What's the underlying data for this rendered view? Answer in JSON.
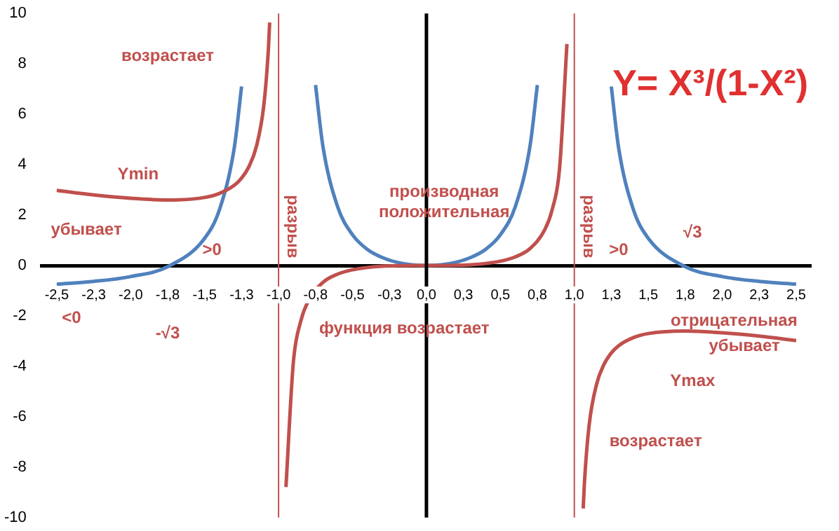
{
  "chart_data": {
    "type": "line",
    "title": "Y= X³/(1-X²)",
    "series": [
      {
        "color": "#c0504d",
        "x": [
          -2.5,
          -2.25,
          -2,
          -1.75,
          -1.5,
          -1.4,
          -1.3,
          -1.25,
          -1.2,
          -1.15,
          -1.1,
          -1.07,
          -1.06,
          -1,
          -0.95,
          -0.9,
          -0.85,
          -0.8,
          -0.7,
          -0.6,
          -0.5,
          -0.4,
          -0.3,
          -0.2,
          0,
          0.2,
          0.3,
          0.4,
          0.5,
          0.6,
          0.7,
          0.8,
          0.85,
          0.9,
          0.95,
          1,
          1.06,
          1.07,
          1.1,
          1.15,
          1.2,
          1.25,
          1.3,
          1.4,
          1.5,
          1.75,
          2,
          2.25,
          2.5
        ],
        "values": [
          2.98,
          2.8,
          2.67,
          2.6,
          2.7,
          2.86,
          3.18,
          3.47,
          3.93,
          4.72,
          6.34,
          8.46,
          9.64,
          null,
          -8.79,
          -3.84,
          -2.21,
          -1.42,
          -0.67,
          -0.34,
          -0.17,
          -0.08,
          -0.03,
          -0.01,
          0,
          0.01,
          0.03,
          0.08,
          0.17,
          0.34,
          0.67,
          1.42,
          2.21,
          3.84,
          8.79,
          null,
          -9.64,
          -8.46,
          -6.34,
          -4.72,
          -3.93,
          -3.47,
          -3.18,
          -2.86,
          -2.7,
          -2.6,
          -2.67,
          -2.8,
          -2.98
        ]
      },
      {
        "color": "#4f81bd",
        "x": [
          -2.5,
          -2.25,
          -2,
          -1.75,
          -1.5,
          -1.4,
          -1.3,
          -1.25,
          -1,
          -0.75,
          -0.7,
          -0.6,
          -0.5,
          -0.4,
          -0.3,
          -0.2,
          -0.1,
          0,
          0.1,
          0.2,
          0.3,
          0.4,
          0.5,
          0.6,
          0.7,
          0.75,
          1,
          1.25,
          1.3,
          1.4,
          1.5,
          1.75,
          2,
          2.25,
          2.5
        ],
        "values": [
          -0.74,
          -0.63,
          -0.44,
          -0.05,
          1.08,
          2.21,
          4.65,
          7.1,
          null,
          7.16,
          4.73,
          2.32,
          1.22,
          0.64,
          0.32,
          0.13,
          0.03,
          0,
          0.03,
          0.13,
          0.32,
          0.64,
          1.22,
          2.32,
          4.73,
          7.16,
          null,
          7.1,
          4.65,
          2.21,
          1.08,
          -0.05,
          -0.44,
          -0.63,
          -0.74
        ]
      }
    ],
    "xlim": [
      -2.6,
      2.6
    ],
    "xticks": [
      {
        "value": -2.5,
        "label": "-2,5"
      },
      {
        "value": -2.25,
        "label": "-2,3"
      },
      {
        "value": -2,
        "label": "-2,0"
      },
      {
        "value": -1.75,
        "label": "-1,8"
      },
      {
        "value": -1.5,
        "label": "-1,5"
      },
      {
        "value": -1.25,
        "label": "-1,3"
      },
      {
        "value": -1,
        "label": "-1,0"
      },
      {
        "value": -0.75,
        "label": "-0,8"
      },
      {
        "value": -0.5,
        "label": "-0,5"
      },
      {
        "value": -0.25,
        "label": "-0,3"
      },
      {
        "value": 0,
        "label": "0,0"
      },
      {
        "value": 0.25,
        "label": "0,3"
      },
      {
        "value": 0.5,
        "label": "0,5"
      },
      {
        "value": 0.75,
        "label": "0,8"
      },
      {
        "value": 1,
        "label": "1,0"
      },
      {
        "value": 1.25,
        "label": "1,3"
      },
      {
        "value": 1.5,
        "label": "1,5"
      },
      {
        "value": 1.75,
        "label": "1,8"
      },
      {
        "value": 2,
        "label": "2,0"
      },
      {
        "value": 2.25,
        "label": "2,3"
      },
      {
        "value": 2.5,
        "label": "2,5"
      }
    ],
    "ylim": [
      -10,
      10
    ],
    "yticks": [
      -10,
      -8,
      -6,
      -4,
      -2,
      0,
      2,
      4,
      6,
      8,
      10
    ],
    "ref_lines": [
      {
        "axis": "x",
        "value": -1,
        "label": "разрыв",
        "color": "#c0504d"
      },
      {
        "axis": "x",
        "value": 1,
        "label": "разрыв",
        "color": "#c0504d"
      }
    ],
    "annotations": [
      "возрастает",
      "Ymin",
      "убывает",
      ">0",
      "<0",
      "-√3",
      "производная",
      "положительная",
      "функция возрастает",
      ">0",
      "√3",
      "отрицательная",
      "убывает",
      "Ymax",
      "возрастает"
    ],
    "grid": false,
    "legend": false,
    "marker": "none",
    "line_style": "solid"
  }
}
